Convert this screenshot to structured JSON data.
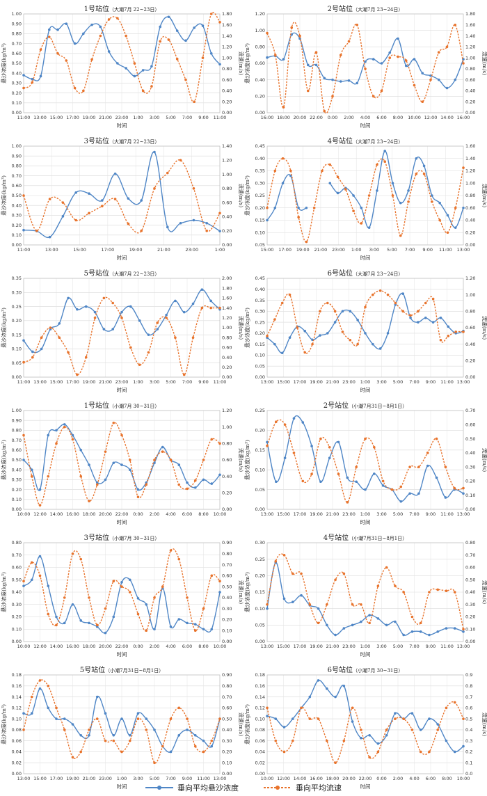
{
  "legend": {
    "series1": "垂向平均悬沙浓度",
    "series2": "垂向平均流速",
    "color1": "#4f86c6",
    "color2": "#e8732c"
  },
  "chart_data": [
    {
      "type": "line",
      "title": "1号站位",
      "subtitle": "（大潮7月 22~23日）",
      "xlabel": "时间",
      "ylabel": "悬沙浓度(kg/m³)",
      "y2label": "流速(m/s)",
      "ylim": [
        0,
        1.0
      ],
      "ystep": 0.1,
      "ydec": 2,
      "y2lim": [
        0,
        1.8
      ],
      "y2step": 0.2,
      "y2dec": 2,
      "xticks": [
        "11:00",
        "13:00",
        "15:00",
        "17:00",
        "19:00",
        "21:00",
        "23:00",
        "1:00",
        "3:00",
        "5:00",
        "7:00",
        "9:00",
        "11:00"
      ],
      "series": [
        {
          "values": [
            0.38,
            0.34,
            0.37,
            0.84,
            0.84,
            0.9,
            0.7,
            0.8,
            0.89,
            0.87,
            0.62,
            0.5,
            0.45,
            0.37,
            0.43,
            0.47,
            0.87,
            0.97,
            0.83,
            0.73,
            0.86,
            0.88,
            0.6,
            0.49
          ]
        },
        {
          "values": [
            0.45,
            0.55,
            1.15,
            1.38,
            1.08,
            0.95,
            0.45,
            0.4,
            0.97,
            1.4,
            1.7,
            1.72,
            1.4,
            0.9,
            0.4,
            0.48,
            1.3,
            1.33,
            0.98,
            0.6,
            0.2,
            1.0,
            1.8,
            1.65
          ]
        }
      ]
    },
    {
      "type": "line",
      "title": "2号站位",
      "subtitle": "（大潮7月 23~24日）",
      "xlabel": "时间",
      "ylabel": "悬沙浓度(kg/m³)",
      "y2label": "流速(m/s)",
      "ylim": [
        0,
        1.2
      ],
      "ystep": 0.2,
      "ydec": 2,
      "y2lim": [
        0,
        1.8
      ],
      "y2step": 0.2,
      "y2dec": 2,
      "xticks": [
        "16:00",
        "18:00",
        "20:00",
        "22:00",
        "0:00",
        "2:00",
        "4:00",
        "6:00",
        "8:00",
        "10:00",
        "12:00",
        "14:00",
        "16:00"
      ],
      "series": [
        {
          "values": [
            0.67,
            0.69,
            0.65,
            0.95,
            0.9,
            0.58,
            0.58,
            0.42,
            0.4,
            0.38,
            0.39,
            0.36,
            0.62,
            0.65,
            0.6,
            0.73,
            0.9,
            0.57,
            0.65,
            0.48,
            0.45,
            0.4,
            0.3,
            0.4,
            0.65
          ]
        },
        {
          "values": [
            1.45,
            1.05,
            0.1,
            1.55,
            1.4,
            0.4,
            1.1,
            0.03,
            0.3,
            1.05,
            1.3,
            1.6,
            0.8,
            0.3,
            0.4,
            1.0,
            1.02,
            0.95,
            0.5,
            0.2,
            0.6,
            1.1,
            1.2,
            1.6,
            0.9
          ]
        }
      ]
    },
    {
      "type": "line",
      "title": "3号站位",
      "subtitle": "（大潮7月 22~23日）",
      "xlabel": "时间",
      "ylabel": "悬沙浓度(kg/m³)",
      "y2label": "流速(m/s)",
      "ylim": [
        0,
        1.0
      ],
      "ystep": 0.1,
      "ydec": 2,
      "y2lim": [
        0,
        1.4
      ],
      "y2step": 0.2,
      "y2dec": 2,
      "xticks": [
        "11:00",
        "13:00",
        "15:00",
        "17:00",
        "19:00",
        "21:00",
        "23:00",
        "1:00"
      ],
      "series": [
        {
          "values": [
            0.15,
            0.14,
            0.08,
            0.29,
            0.53,
            0.52,
            0.45,
            0.72,
            0.47,
            0.45,
            0.94,
            0.18,
            0.22,
            0.25,
            0.22,
            0.14
          ]
        },
        {
          "values": [
            0.7,
            0.2,
            0.65,
            0.6,
            0.35,
            0.45,
            0.55,
            0.65,
            0.3,
            0.2,
            0.8,
            1.02,
            1.2,
            0.8,
            0.2,
            0.45
          ]
        }
      ]
    },
    {
      "type": "line",
      "title": "4号站位",
      "subtitle": "（大潮7月 23~24日）",
      "xlabel": "时间",
      "ylabel": "悬沙浓度(kg/m³)",
      "y2label": "流速(m/s)",
      "ylim": [
        0.05,
        0.45
      ],
      "ystep": 0.05,
      "ydec": 2,
      "y2lim": [
        0,
        1.6
      ],
      "y2step": 0.2,
      "y2dec": 2,
      "xticks": [
        "15:00",
        "17:00",
        "19:00",
        "21:00",
        "23:00",
        "1:00",
        "3:00",
        "5:00",
        "7:00",
        "9:00",
        "11:00",
        "13:00"
      ],
      "series": [
        {
          "values": [
            0.15,
            0.2,
            0.3,
            0.33,
            0.2,
            0.2,
            null,
            null,
            0.3,
            0.26,
            0.28,
            0.25,
            0.2,
            0.12,
            0.27,
            0.43,
            0.3,
            0.22,
            0.27,
            0.4,
            0.37,
            0.25,
            0.22,
            0.17,
            0.12,
            0.2
          ]
        },
        {
          "values": [
            0.6,
            1.2,
            1.4,
            1.2,
            0.45,
            0.05,
            0.6,
            1.2,
            1.3,
            1.1,
            0.9,
            0.55,
            0.35,
            0.8,
            1.3,
            1.35,
            0.8,
            0.15,
            0.7,
            1.15,
            1.15,
            0.7,
            0.4,
            0.2,
            0.6,
            1.25
          ]
        }
      ]
    },
    {
      "type": "line",
      "title": "5号站位",
      "subtitle": "（大潮7月 22~23日）",
      "xlabel": "时间",
      "ylabel": "悬沙浓度(kg/m³)",
      "y2label": "流速(m/s)",
      "ylim": [
        0,
        0.35
      ],
      "ystep": 0.05,
      "ydec": 2,
      "y2lim": [
        0,
        2.0
      ],
      "y2step": 0.2,
      "y2dec": 2,
      "xticks": [
        "11:00",
        "13:00",
        "15:00",
        "17:00",
        "19:00",
        "21:00",
        "23:00",
        "1:00",
        "3:00",
        "5:00",
        "7:00",
        "9:00",
        "11:00"
      ],
      "series": [
        {
          "values": [
            0.13,
            0.09,
            0.1,
            0.17,
            0.19,
            0.28,
            0.24,
            0.25,
            0.23,
            0.17,
            0.17,
            0.23,
            0.25,
            0.2,
            0.15,
            0.17,
            0.22,
            0.27,
            0.23,
            0.26,
            0.31,
            0.27,
            0.24
          ]
        },
        {
          "values": [
            0.3,
            0.4,
            0.8,
            1.0,
            0.8,
            0.5,
            0.05,
            0.4,
            1.2,
            1.6,
            1.5,
            1.2,
            0.6,
            0.25,
            0.5,
            1.1,
            1.2,
            0.8,
            0.05,
            0.8,
            1.4,
            1.4,
            1.4
          ]
        }
      ]
    },
    {
      "type": "line",
      "title": "6号站位",
      "subtitle": "（大潮7月 23~24日）",
      "xlabel": "时间",
      "ylabel": "悬沙浓度(kg/m³)",
      "y2label": "流速(m/s)",
      "ylim": [
        0,
        0.45
      ],
      "ystep": 0.05,
      "ydec": 2,
      "y2lim": [
        0,
        1.2
      ],
      "y2step": 0.2,
      "y2dec": 2,
      "xticks": [
        "13:00",
        "15:00",
        "17:00",
        "19:00",
        "21:00",
        "23:00",
        "1:00",
        "3:00",
        "5:00",
        "7:00",
        "9:00",
        "11:00",
        "13:00"
      ],
      "series": [
        {
          "values": [
            0.18,
            0.15,
            0.11,
            0.18,
            0.23,
            0.21,
            0.17,
            0.19,
            0.2,
            0.25,
            0.3,
            0.3,
            0.26,
            0.2,
            0.15,
            0.13,
            0.2,
            0.33,
            0.38,
            0.27,
            0.25,
            0.27,
            0.25,
            0.27,
            0.23,
            0.2,
            0.21
          ]
        },
        {
          "values": [
            0.5,
            0.7,
            0.9,
            1.0,
            0.6,
            0.3,
            0.4,
            0.8,
            0.9,
            0.8,
            0.55,
            0.45,
            0.4,
            0.85,
            1.0,
            1.05,
            1.0,
            0.9,
            0.8,
            0.75,
            0.8,
            0.9,
            0.95,
            0.45,
            0.5,
            0.55,
            0.55
          ]
        }
      ]
    },
    {
      "type": "line",
      "title": "1号站位",
      "subtitle": "（小潮7月 30~31日）",
      "xlabel": "时间",
      "ylabel": "悬沙浓度(kg/m³)",
      "y2label": "流速(m/s)",
      "ylim": [
        0,
        1.0
      ],
      "ystep": 0.1,
      "ydec": 2,
      "y2lim": [
        0,
        1.2
      ],
      "y2step": 0.2,
      "y2dec": 2,
      "xticks": [
        "10:00",
        "12:00",
        "14:00",
        "16:00",
        "18:00",
        "20:00",
        "22:00",
        "0:00",
        "2:00",
        "4:00",
        "6:00",
        "8:00",
        "10:00"
      ],
      "series": [
        {
          "values": [
            0.5,
            0.4,
            0.2,
            0.75,
            0.8,
            0.86,
            0.75,
            0.6,
            0.45,
            0.27,
            0.3,
            0.47,
            0.45,
            0.4,
            0.2,
            0.27,
            0.47,
            0.63,
            0.5,
            0.45,
            0.27,
            0.22,
            0.3,
            0.26,
            0.35
          ]
        },
        {
          "values": [
            0.9,
            0.4,
            0.05,
            0.4,
            0.8,
            1.0,
            0.85,
            0.4,
            0.1,
            0.3,
            0.7,
            1.05,
            0.9,
            0.6,
            0.15,
            0.3,
            0.6,
            0.7,
            0.6,
            0.3,
            0.25,
            0.35,
            0.6,
            0.85,
            0.8
          ]
        }
      ]
    },
    {
      "type": "line",
      "title": "2号站位",
      "subtitle": "（小潮7月31日~8月1日）",
      "xlabel": "时间",
      "ylabel": "悬沙浓度(kg/m³)",
      "y2label": "流速(m/s)",
      "ylim": [
        0,
        0.25
      ],
      "ystep": 0.05,
      "ydec": 2,
      "y2lim": [
        0,
        0.7
      ],
      "y2step": 0.1,
      "y2dec": 2,
      "xticks": [
        "13:00",
        "15:00",
        "17:00",
        "19:00",
        "21:00",
        "23:00",
        "1:00",
        "3:00",
        "5:00",
        "7:00",
        "9:00",
        "11:00",
        "13:00"
      ],
      "series": [
        {
          "values": [
            0.17,
            0.07,
            0.13,
            0.23,
            0.22,
            0.16,
            0.07,
            0.13,
            0.17,
            0.08,
            0.07,
            0.05,
            0.09,
            0.06,
            0.05,
            0.02,
            0.04,
            0.04,
            0.11,
            0.08,
            0.03,
            0.05,
            0.04
          ]
        },
        {
          "values": [
            0.45,
            0.62,
            0.6,
            0.4,
            0.2,
            0.25,
            0.5,
            0.44,
            0.25,
            0.05,
            0.3,
            0.5,
            0.44,
            0.2,
            0.14,
            0.16,
            0.3,
            0.3,
            0.4,
            0.5,
            0.3,
            0.15,
            0.15
          ]
        }
      ]
    },
    {
      "type": "line",
      "title": "3号站位",
      "subtitle": "（小潮7月 30~31日）",
      "xlabel": "时间",
      "ylabel": "悬沙浓度(kg/m³)",
      "y2label": "流速(m/s)",
      "ylim": [
        0,
        0.8
      ],
      "ystep": 0.1,
      "ydec": 2,
      "y2lim": [
        0,
        0.9
      ],
      "y2step": 0.1,
      "y2dec": 2,
      "xticks": [
        "10:00",
        "12:00",
        "14:00",
        "16:00",
        "18:00",
        "20:00",
        "22:00",
        "0:00",
        "2:00",
        "4:00",
        "6:00",
        "8:00",
        "10:00"
      ],
      "series": [
        {
          "values": [
            0.45,
            0.5,
            0.69,
            0.45,
            0.2,
            0.15,
            0.3,
            0.17,
            0.15,
            0.12,
            0.07,
            0.2,
            0.48,
            0.5,
            0.35,
            0.3,
            0.1,
            0.43,
            0.12,
            0.18,
            0.15,
            0.14,
            0.1,
            0.1,
            0.4
          ]
        },
        {
          "values": [
            0.55,
            0.72,
            0.6,
            0.25,
            0.15,
            0.4,
            0.8,
            0.75,
            0.4,
            0.15,
            0.3,
            0.55,
            0.5,
            0.45,
            0.25,
            0.1,
            0.4,
            0.5,
            0.83,
            0.75,
            0.4,
            0.1,
            0.3,
            0.6,
            0.55
          ]
        }
      ]
    },
    {
      "type": "line",
      "title": "4号站位",
      "subtitle": "（小潮7月31日~8月1日）",
      "xlabel": "时间",
      "ylabel": "悬沙浓度(kg/m³)",
      "y2label": "流速(m/s)",
      "ylim": [
        0,
        0.3
      ],
      "ystep": 0.05,
      "ydec": 2,
      "y2lim": [
        0,
        0.8
      ],
      "y2step": 0.1,
      "y2dec": 2,
      "xticks": [
        "13:00",
        "15:00",
        "17:00",
        "19:00",
        "21:00",
        "23:00",
        "1:00",
        "3:00",
        "5:00",
        "7:00",
        "9:00",
        "11:00",
        "13:00"
      ],
      "series": [
        {
          "values": [
            0.1,
            0.24,
            0.13,
            0.12,
            0.14,
            0.11,
            0.1,
            0.05,
            0.02,
            0.04,
            0.05,
            0.06,
            0.08,
            0.07,
            0.05,
            0.06,
            0.02,
            0.03,
            0.03,
            0.02,
            0.03,
            0.04,
            0.04,
            0.03
          ]
        },
        {
          "values": [
            0.3,
            0.65,
            0.7,
            0.55,
            0.55,
            0.3,
            0.15,
            0.3,
            0.5,
            0.55,
            0.3,
            0.3,
            0.15,
            0.45,
            0.6,
            0.45,
            0.4,
            0.2,
            0.15,
            0.4,
            0.42,
            0.41,
            0.4,
            0.1
          ]
        }
      ]
    },
    {
      "type": "line",
      "title": "5号站位",
      "subtitle": "（小潮7月31日~8月1日）",
      "xlabel": "时间",
      "ylabel": "悬沙浓度(kg/m³)",
      "y2label": "流速(m/s)",
      "ylim": [
        0,
        0.18
      ],
      "ystep": 0.02,
      "ydec": 2,
      "y2lim": [
        0,
        0.9
      ],
      "y2step": 0.1,
      "y2dec": 2,
      "xticks": [
        "13:00",
        "15:00",
        "17:00",
        "19:00",
        "21:00",
        "23:00",
        "1:00",
        "3:00",
        "5:00",
        "7:00",
        "9:00",
        "11:00",
        "13:00"
      ],
      "series": [
        {
          "values": [
            0.11,
            0.11,
            0.155,
            0.12,
            0.1,
            0.1,
            0.09,
            0.07,
            0.07,
            0.14,
            0.11,
            0.07,
            0.1,
            0.07,
            0.11,
            0.1,
            0.08,
            0.05,
            0.04,
            0.07,
            0.08,
            0.07,
            0.06,
            0.05,
            0.1
          ]
        },
        {
          "values": [
            0.4,
            0.7,
            0.85,
            0.8,
            0.6,
            0.4,
            0.15,
            0.2,
            0.4,
            0.5,
            0.3,
            0.3,
            0.2,
            0.3,
            0.5,
            0.4,
            0.1,
            0.25,
            0.5,
            0.6,
            0.5,
            0.25,
            0.2,
            0.3,
            0.5
          ]
        }
      ]
    },
    {
      "type": "line",
      "title": "6号站位",
      "subtitle": "（小潮7月 30~31日）",
      "xlabel": "时间",
      "ylabel": "悬沙浓度(kg/m³)",
      "y2label": "流速(m/s)",
      "ylim": [
        0,
        0.18
      ],
      "ystep": 0.02,
      "ydec": 2,
      "y2lim": [
        0,
        0.9
      ],
      "y2step": 0.1,
      "y2dec": 1,
      "xticks": [
        "10:00",
        "12:00",
        "14:00",
        "16:00",
        "18:00",
        "20:00",
        "22:00",
        "0:00",
        "2:00",
        "4:00",
        "6:00",
        "8:00",
        "10:00"
      ],
      "series": [
        {
          "values": [
            0.105,
            0.1,
            0.085,
            0.1,
            0.12,
            0.14,
            0.17,
            0.155,
            0.14,
            0.16,
            0.095,
            0.065,
            0.07,
            0.055,
            0.07,
            0.11,
            0.1,
            0.11,
            0.08,
            0.1,
            0.09,
            0.06,
            0.04,
            0.05
          ]
        },
        {
          "values": [
            0.6,
            0.3,
            0.2,
            0.3,
            0.6,
            0.5,
            0.5,
            0.3,
            0.1,
            0.3,
            0.6,
            0.4,
            0.15,
            0.2,
            0.4,
            0.5,
            0.5,
            0.4,
            0.2,
            0.2,
            0.4,
            0.6,
            0.65,
            0.5
          ]
        }
      ]
    }
  ]
}
